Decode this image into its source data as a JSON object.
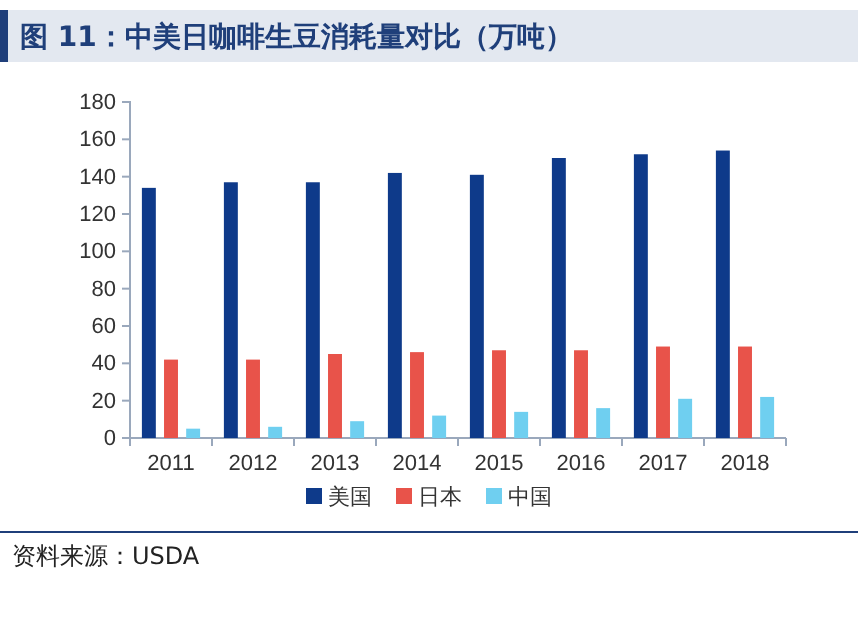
{
  "chart_data": {
    "type": "bar",
    "title": "图 11：中美日咖啡生豆消耗量对比（万吨）",
    "categories": [
      "2011",
      "2012",
      "2013",
      "2014",
      "2015",
      "2016",
      "2017",
      "2018"
    ],
    "series": [
      {
        "name": "美国",
        "color": "#0e3a8a",
        "values": [
          134,
          137,
          137,
          142,
          141,
          150,
          152,
          154
        ]
      },
      {
        "name": "日本",
        "color": "#e8534a",
        "values": [
          42,
          42,
          45,
          46,
          47,
          47,
          49,
          49
        ]
      },
      {
        "name": "中国",
        "color": "#6fcff0",
        "values": [
          5,
          6,
          9,
          12,
          14,
          16,
          21,
          22
        ]
      }
    ],
    "ylim": [
      0,
      180
    ],
    "yticks": [
      0,
      20,
      40,
      60,
      80,
      100,
      120,
      140,
      160,
      180
    ],
    "grid": false,
    "legend": "bottom",
    "annotations": [
      "资料来源：USDA"
    ]
  }
}
